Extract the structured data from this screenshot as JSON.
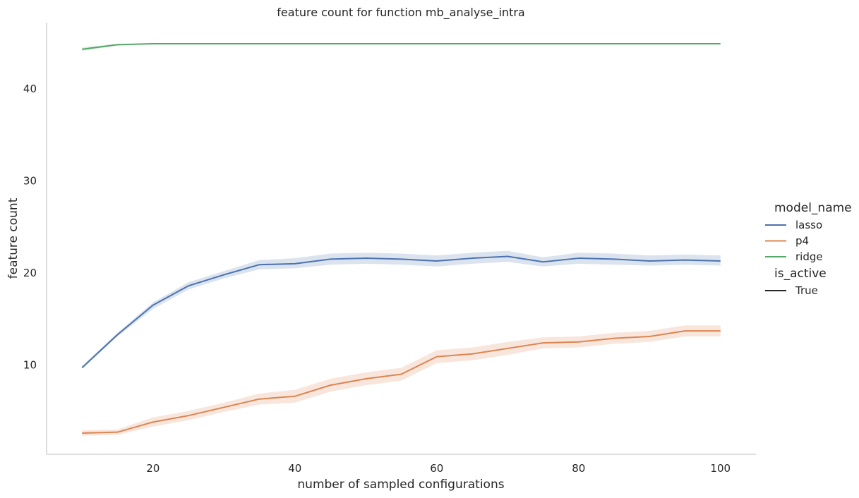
{
  "chart_data": {
    "type": "line",
    "title": "feature count for function mb_analyse_intra",
    "xlabel": "number of sampled configurations",
    "ylabel": "feature count",
    "xlim": [
      5,
      105
    ],
    "ylim": [
      0.3,
      47.2
    ],
    "xticks": [
      20,
      40,
      60,
      80,
      100
    ],
    "yticks": [
      10,
      20,
      30,
      40
    ],
    "grid": false,
    "legend_position": "right",
    "x": [
      10,
      15,
      20,
      25,
      30,
      35,
      40,
      45,
      50,
      55,
      60,
      65,
      70,
      75,
      80,
      85,
      90,
      95,
      100
    ],
    "series": [
      {
        "name": "lasso",
        "color": "#4c72b0",
        "values": [
          9.7,
          13.3,
          16.5,
          18.6,
          19.8,
          20.9,
          21.0,
          21.5,
          21.6,
          21.5,
          21.3,
          21.6,
          21.8,
          21.2,
          21.6,
          21.5,
          21.3,
          21.4,
          21.3
        ],
        "ci_low": [
          9.6,
          13.1,
          16.1,
          18.2,
          19.4,
          20.4,
          20.5,
          20.9,
          21.0,
          20.9,
          20.7,
          21.0,
          21.2,
          20.7,
          21.0,
          20.9,
          20.8,
          20.9,
          20.8
        ],
        "ci_high": [
          9.9,
          13.5,
          16.8,
          19.0,
          20.2,
          21.4,
          21.6,
          22.1,
          22.2,
          22.1,
          21.9,
          22.2,
          22.4,
          21.7,
          22.2,
          22.1,
          21.9,
          22.0,
          21.9
        ]
      },
      {
        "name": "p4",
        "color": "#dd8452",
        "values": [
          2.6,
          2.7,
          3.8,
          4.5,
          5.4,
          6.3,
          6.6,
          7.8,
          8.5,
          9.0,
          10.9,
          11.2,
          11.8,
          12.4,
          12.5,
          12.9,
          13.1,
          13.7,
          13.7
        ],
        "ci_low": [
          2.3,
          2.4,
          3.3,
          4.0,
          4.9,
          5.7,
          5.9,
          7.1,
          7.8,
          8.3,
          10.2,
          10.5,
          11.1,
          11.8,
          11.9,
          12.3,
          12.5,
          13.1,
          13.1
        ],
        "ci_high": [
          2.9,
          3.0,
          4.3,
          5.0,
          5.9,
          6.9,
          7.3,
          8.5,
          9.2,
          9.7,
          11.6,
          11.9,
          12.5,
          13.0,
          13.1,
          13.5,
          13.7,
          14.3,
          14.3
        ]
      },
      {
        "name": "ridge",
        "color": "#55a868",
        "values": [
          44.3,
          44.8,
          44.9,
          44.9,
          44.9,
          44.9,
          44.9,
          44.9,
          44.9,
          44.9,
          44.9,
          44.9,
          44.9,
          44.9,
          44.9,
          44.9,
          44.9,
          44.9,
          44.9
        ],
        "ci_low": [
          44.1,
          44.7,
          44.9,
          44.9,
          44.9,
          44.9,
          44.9,
          44.9,
          44.9,
          44.9,
          44.9,
          44.9,
          44.9,
          44.9,
          44.9,
          44.9,
          44.9,
          44.9,
          44.9
        ],
        "ci_high": [
          44.5,
          44.9,
          44.9,
          44.9,
          44.9,
          44.9,
          44.9,
          44.9,
          44.9,
          44.9,
          44.9,
          44.9,
          44.9,
          44.9,
          44.9,
          44.9,
          44.9,
          44.9,
          44.9
        ]
      }
    ],
    "legend": {
      "hue_title": "model_name",
      "style_title": "is_active",
      "style_entries": [
        {
          "label": "True",
          "color": "#262626"
        }
      ]
    }
  }
}
